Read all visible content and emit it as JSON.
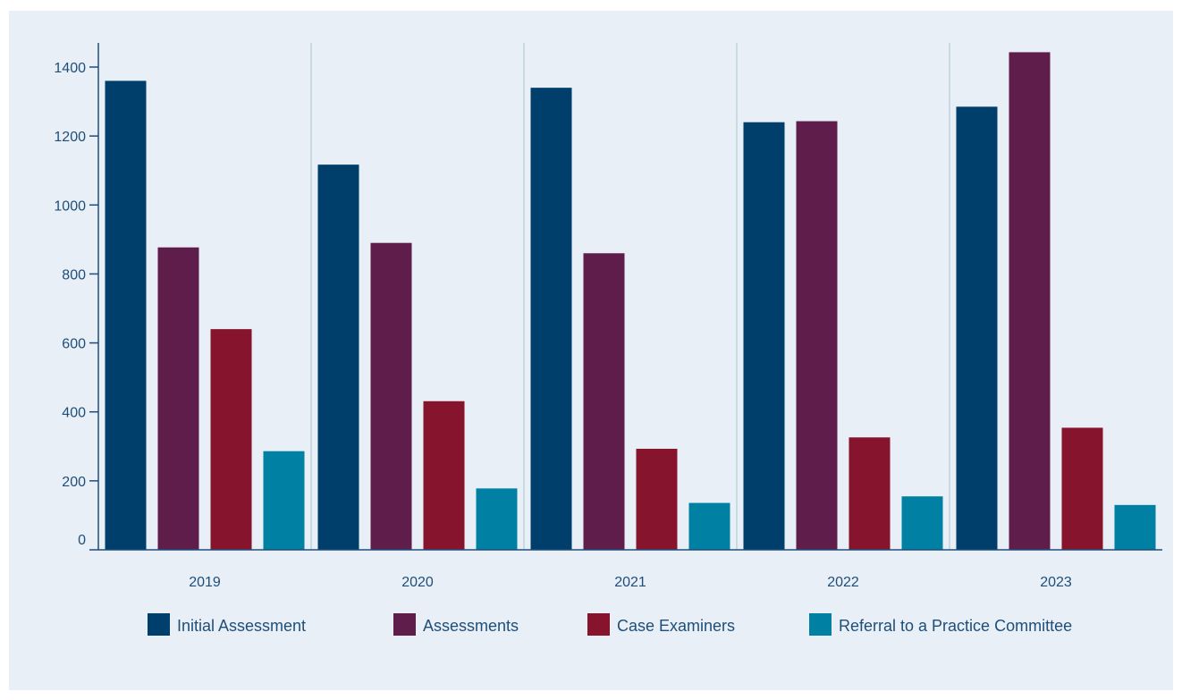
{
  "chart_data": {
    "type": "bar",
    "title": "",
    "xlabel": "",
    "ylabel": "",
    "categories": [
      "2019",
      "2020",
      "2021",
      "2022",
      "2023"
    ],
    "series": [
      {
        "name": "Initial Assessment",
        "color": "#003f6b",
        "values": [
          1360,
          1117,
          1340,
          1240,
          1285
        ]
      },
      {
        "name": "Assessments",
        "color": "#5e1d4a",
        "values": [
          877,
          890,
          860,
          1243,
          1443
        ]
      },
      {
        "name": "Case Examiners",
        "color": "#85142c",
        "values": [
          640,
          431,
          293,
          326,
          354
        ]
      },
      {
        "name": "Referral to a Practice Committee",
        "color": "#0080a3",
        "values": [
          286,
          178,
          136,
          155,
          130
        ]
      }
    ],
    "yticks": [
      0,
      200,
      400,
      600,
      800,
      1000,
      1200,
      1400
    ],
    "ylim": [
      0,
      1470
    ],
    "grid": false,
    "legend_position": "bottom"
  }
}
